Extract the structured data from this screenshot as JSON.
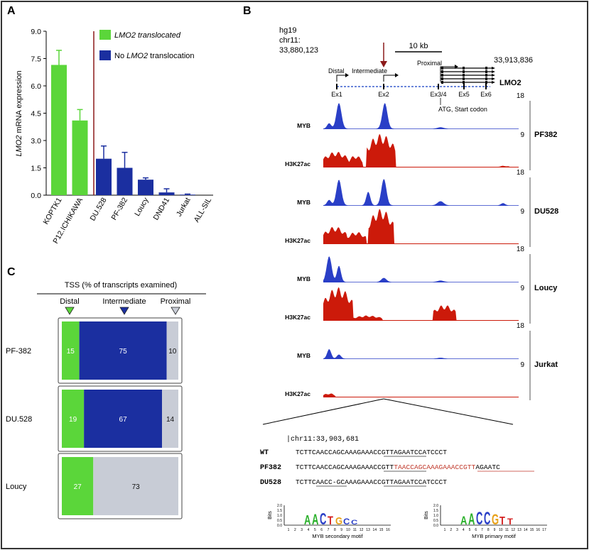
{
  "panels": {
    "A": "A",
    "B": "B",
    "C": "C"
  },
  "chart_data": [
    {
      "type": "bar",
      "ylabel_italic": "LMO2",
      "ylabel_rest": " mRNA expression",
      "ylim": [
        0,
        9.0
      ],
      "yticks": [
        "0.0",
        "1.5",
        "3.0",
        "4.5",
        "6.0",
        "7.5",
        "9.0"
      ],
      "categories": [
        "KOPTK1",
        "P12.ICHIKAWA",
        "DU.528",
        "PF-382",
        "Loucy",
        "DND41",
        "Jurkat",
        "ALL-SIL"
      ],
      "values": [
        7.15,
        4.1,
        2.0,
        1.5,
        0.85,
        0.15,
        0.03,
        0.0
      ],
      "errors": [
        0.8,
        0.6,
        0.7,
        0.85,
        0.1,
        0.2,
        0.03,
        0.0
      ],
      "groups": [
        "translocated",
        "translocated",
        "none",
        "none",
        "none",
        "none",
        "none",
        "none"
      ],
      "legend": [
        {
          "italic": "LMO2",
          "rest": " translocated",
          "color": "#5bd63a"
        },
        {
          "italic": "",
          "rest": "No ",
          "italic2": "LMO2",
          "rest2": " translocation",
          "color": "#1b2fa0"
        }
      ],
      "colors": {
        "translocated": "#5bd63a",
        "none": "#1b2fa0",
        "divider": "#8b1a1a"
      }
    },
    {
      "type": "bar",
      "title": "TSS (% of transcripts examined)",
      "columns": [
        "Distal",
        "Intermediate",
        "Proximal"
      ],
      "rows": [
        {
          "label": "PF-382",
          "values": [
            15,
            75,
            10
          ]
        },
        {
          "label": "DU.528",
          "values": [
            19,
            67,
            14
          ]
        },
        {
          "label": "Loucy",
          "values": [
            27,
            0,
            73
          ]
        }
      ],
      "colors": {
        "distal": "#5bd63a",
        "intermediate": "#1b2fa0",
        "proximal": "#c8ccd6"
      }
    }
  ],
  "genome": {
    "assembly": "hg19",
    "chrom": "chr11:",
    "start": "33,880,123",
    "end": "33,913,836",
    "scale": "10 kb",
    "labels": {
      "distal": "Distal",
      "intermediate": "Intermediate",
      "proximal": "Proximal",
      "gene": "LMO2",
      "atg": "ATG, Start codon"
    },
    "exons": [
      "Ex1",
      "Ex2",
      "Ex3/4",
      "Ex5",
      "Ex6"
    ],
    "track_max_a": "18",
    "track_max_b": "9",
    "track_names": {
      "myb": "MYB",
      "h3k27ac": "H3K27ac"
    },
    "cell_lines": [
      "PF382",
      "DU528",
      "Loucy",
      "Jurkat"
    ],
    "track_colors": {
      "myb": "#2a3fc7",
      "h3k27ac": "#cc1a0a"
    }
  },
  "sequence": {
    "locus": "|chr11:33,903,681",
    "rows": [
      {
        "label": "WT",
        "seq": "TCTTCAACCAGCAAAGAAACCGTTAGAATCCATCCCT"
      },
      {
        "label": "PF382",
        "seq_a": "TCTTCAACCAGCAAAGAAACCGTT",
        "seq_b": "TAACCAGCAAAGAAACCGTT",
        "seq_c": "AGAATC"
      },
      {
        "label": "DU528",
        "seq": "TCTTCAACC-GCAAAGAAACCGTTAGAATCCATCCCT"
      }
    ],
    "motifs": [
      {
        "name": "MYB secondary motif",
        "letters": "AACTGCC"
      },
      {
        "name": "MYB primary motif",
        "letters": "AACCGTT"
      }
    ],
    "motif_ylabel": "Bits",
    "motif_yticks": [
      "2.0",
      "1.5",
      "1.0",
      "0.5",
      "0.0"
    ],
    "motif_xticks_a": [
      "1",
      "2",
      "3",
      "4",
      "5",
      "6",
      "7",
      "8",
      "9",
      "10",
      "11",
      "12",
      "13",
      "14",
      "15",
      "16"
    ],
    "motif_xticks_b": [
      "1",
      "2",
      "3",
      "4",
      "5",
      "6",
      "7",
      "8",
      "9",
      "10",
      "11",
      "12",
      "13",
      "14",
      "15",
      "16",
      "17"
    ],
    "colors": {
      "A": "#2bb02b",
      "C": "#2a3fc7",
      "G": "#e8a21a",
      "T": "#d42020",
      "insert": "#c0392b"
    }
  }
}
